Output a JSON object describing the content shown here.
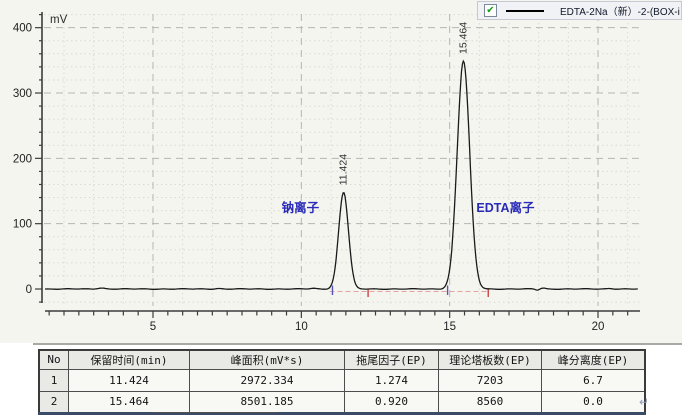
{
  "chart_data": {
    "type": "line",
    "kind": "chromatogram",
    "ylabel": "mV",
    "x_ticks": [
      5,
      10,
      15,
      20
    ],
    "y_ticks": [
      0,
      100,
      200,
      300,
      400
    ],
    "x_range_min": [
      1.36,
      21.35
    ],
    "y_range_mV": [
      -25,
      425
    ],
    "trace_color": "#1a1a1a",
    "peak_label_color": "#333333",
    "ion_label_color": "#2a2ab8",
    "peak_start_marker_color": "#5555bb",
    "peak_end_marker_color": "#cc4444",
    "integration_baseline": {
      "from_min": 10.95,
      "to_min": 16.35,
      "color": "#e4a3a3"
    },
    "peaks": [
      {
        "rt_min": 11.424,
        "height_mV": 148,
        "sigma_min": 0.165,
        "label": "11.424",
        "ion_label": "钠离子",
        "ion_dx": -62,
        "start_min": 11.05,
        "end_min": 12.25
      },
      {
        "rt_min": 15.464,
        "height_mV": 349,
        "sigma_min": 0.21,
        "label": "15.464",
        "ion_label": "EDTA离子",
        "ion_dx": 13,
        "start_min": 14.93,
        "end_min": 16.3
      }
    ],
    "noise_bumps": [
      {
        "t": 3.25,
        "h": 1.6,
        "s": 0.12
      },
      {
        "t": 7.2,
        "h": 0.8,
        "s": 0.1
      },
      {
        "t": 10.4,
        "h": 1.0,
        "s": 0.1
      },
      {
        "t": 17.95,
        "h": -1.6,
        "s": 0.06
      },
      {
        "t": 18.15,
        "h": 1.4,
        "s": 0.08
      },
      {
        "t": 20.4,
        "h": 0.9,
        "s": 0.1
      }
    ],
    "legend": {
      "label": "EDTA-2Na（新）-2-(BOX-i",
      "checked": true,
      "check_glyph": "✔",
      "line_color": "#000000"
    }
  },
  "table": {
    "headers": [
      "No",
      "保留时间(min)",
      "峰面积(mV*s)",
      "拖尾因子(EP)",
      "理论塔板数(EP)",
      "峰分离度(EP)"
    ],
    "rows": [
      [
        "1",
        "11.424",
        "2972.334",
        "1.274",
        "7203",
        "6.7"
      ],
      [
        "2",
        "15.464",
        "8501.185",
        "0.920",
        "8560",
        "0.0"
      ]
    ]
  },
  "misc": {
    "return_mark": "↵"
  }
}
